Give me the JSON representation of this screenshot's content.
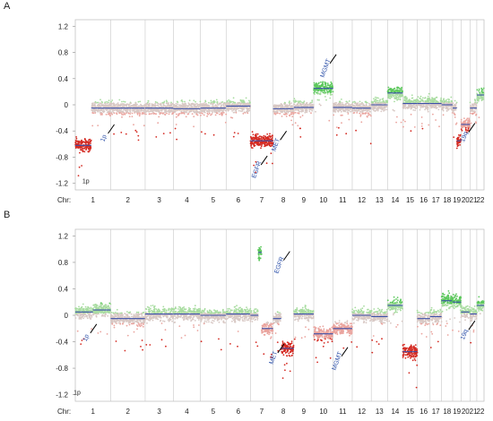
{
  "chart_data": [
    {
      "panel": "A",
      "type": "scatter",
      "y_ticks": [
        "1.2",
        "0.8",
        "0.4",
        "0",
        "-0.4",
        "-0.8",
        "-1.2"
      ],
      "ylim": [
        -1.3,
        1.3
      ],
      "x_prefix": "Chr:",
      "chromosomes": [
        {
          "label": "1",
          "segments": [
            {
              "from": 0.0,
              "to": 0.45,
              "value": -0.62
            },
            {
              "from": 0.45,
              "to": 1.0,
              "value": -0.05
            }
          ]
        },
        {
          "label": "2",
          "segments": [
            {
              "from": 0,
              "to": 1,
              "value": -0.05
            }
          ]
        },
        {
          "label": "3",
          "segments": [
            {
              "from": 0,
              "to": 1,
              "value": -0.05
            }
          ]
        },
        {
          "label": "4",
          "segments": [
            {
              "from": 0,
              "to": 1,
              "value": -0.06
            }
          ]
        },
        {
          "label": "5",
          "segments": [
            {
              "from": 0,
              "to": 1,
              "value": -0.05
            }
          ]
        },
        {
          "label": "6",
          "segments": [
            {
              "from": 0,
              "to": 1,
              "value": -0.02
            }
          ]
        },
        {
          "label": "7",
          "segments": [
            {
              "from": 0,
              "to": 1,
              "value": -0.55
            }
          ]
        },
        {
          "label": "8",
          "segments": [
            {
              "from": 0,
              "to": 1,
              "value": -0.06
            }
          ]
        },
        {
          "label": "9",
          "segments": [
            {
              "from": 0,
              "to": 1,
              "value": -0.04
            }
          ]
        },
        {
          "label": "10",
          "segments": [
            {
              "from": 0,
              "to": 1,
              "value": 0.25
            }
          ]
        },
        {
          "label": "11",
          "segments": [
            {
              "from": 0,
              "to": 1,
              "value": -0.04
            }
          ]
        },
        {
          "label": "12",
          "segments": [
            {
              "from": 0,
              "to": 1,
              "value": -0.05
            }
          ]
        },
        {
          "label": "13",
          "segments": [
            {
              "from": 0,
              "to": 1,
              "value": 0.0
            }
          ]
        },
        {
          "label": "14",
          "segments": [
            {
              "from": 0,
              "to": 1,
              "value": 0.18
            }
          ]
        },
        {
          "label": "15",
          "segments": [
            {
              "from": 0,
              "to": 1,
              "value": 0.02
            }
          ]
        },
        {
          "label": "16",
          "segments": [
            {
              "from": 0,
              "to": 1,
              "value": 0.02
            }
          ]
        },
        {
          "label": "17",
          "segments": [
            {
              "from": 0,
              "to": 1,
              "value": 0.02
            }
          ]
        },
        {
          "label": "18",
          "segments": [
            {
              "from": 0,
              "to": 1,
              "value": 0.0
            }
          ]
        },
        {
          "label": "19",
          "segments": [
            {
              "from": 0,
              "to": 0.5,
              "value": -0.05
            },
            {
              "from": 0.5,
              "to": 1.0,
              "value": -0.55
            }
          ]
        },
        {
          "label": "20",
          "segments": [
            {
              "from": 0,
              "to": 1,
              "value": -0.3
            }
          ]
        },
        {
          "label": "21",
          "segments": [
            {
              "from": 0,
              "to": 1,
              "value": -0.05
            }
          ]
        },
        {
          "label": "22",
          "segments": [
            {
              "from": 0,
              "to": 1,
              "value": 0.15
            }
          ]
        }
      ],
      "annotations": [
        {
          "text": "1p",
          "chr": 1,
          "pos": 0.3,
          "y": -1.2,
          "style": "black",
          "rotate": false
        },
        {
          "text": "1p",
          "chr": 1,
          "pos": 0.85,
          "y": -0.52,
          "style": "blue",
          "rotate": true
        },
        {
          "text": "EGFR",
          "chr": 7,
          "pos": 0.35,
          "y": -1.0,
          "style": "blue",
          "rotate": true
        },
        {
          "text": "MET",
          "chr": 7,
          "pos": 1.2,
          "y": -0.62,
          "style": "blue",
          "rotate": true
        },
        {
          "text": "MGMT",
          "chr": 10,
          "pos": 0.7,
          "y": 0.55,
          "style": "blue",
          "rotate": true
        },
        {
          "text": "19q",
          "chr": 20,
          "pos": 0.55,
          "y": -0.5,
          "style": "blue",
          "rotate": true
        }
      ]
    },
    {
      "panel": "B",
      "type": "scatter",
      "y_ticks": [
        "1.2",
        "0.8",
        "0.4",
        "0",
        "-0.4",
        "-0.8",
        "-1.2"
      ],
      "ylim": [
        -1.3,
        1.3
      ],
      "x_prefix": "Chr:",
      "chromosomes": [
        {
          "label": "1",
          "segments": [
            {
              "from": 0.0,
              "to": 0.5,
              "value": 0.05
            },
            {
              "from": 0.5,
              "to": 1.0,
              "value": 0.08
            }
          ]
        },
        {
          "label": "2",
          "segments": [
            {
              "from": 0,
              "to": 1,
              "value": -0.05
            }
          ]
        },
        {
          "label": "3",
          "segments": [
            {
              "from": 0,
              "to": 1,
              "value": 0.02
            }
          ]
        },
        {
          "label": "4",
          "segments": [
            {
              "from": 0,
              "to": 1,
              "value": 0.02
            }
          ]
        },
        {
          "label": "5",
          "segments": [
            {
              "from": 0,
              "to": 1,
              "value": 0.0
            }
          ]
        },
        {
          "label": "6",
          "segments": [
            {
              "from": 0,
              "to": 1,
              "value": 0.02
            }
          ]
        },
        {
          "label": "7",
          "segments": [
            {
              "from": 0.0,
              "to": 0.35,
              "value": 0.0
            },
            {
              "from": 0.35,
              "to": 0.5,
              "value": 0.95
            },
            {
              "from": 0.5,
              "to": 1.0,
              "value": -0.2
            }
          ]
        },
        {
          "label": "8",
          "segments": [
            {
              "from": 0.0,
              "to": 0.4,
              "value": -0.05
            },
            {
              "from": 0.4,
              "to": 1.0,
              "value": -0.5
            }
          ]
        },
        {
          "label": "9",
          "segments": [
            {
              "from": 0,
              "to": 1,
              "value": 0.02
            }
          ]
        },
        {
          "label": "10",
          "segments": [
            {
              "from": 0,
              "to": 1,
              "value": -0.28
            }
          ]
        },
        {
          "label": "11",
          "segments": [
            {
              "from": 0,
              "to": 1,
              "value": -0.2
            }
          ]
        },
        {
          "label": "12",
          "segments": [
            {
              "from": 0,
              "to": 1,
              "value": 0.0
            }
          ]
        },
        {
          "label": "13",
          "segments": [
            {
              "from": 0,
              "to": 1,
              "value": -0.02
            }
          ]
        },
        {
          "label": "14",
          "segments": [
            {
              "from": 0,
              "to": 1,
              "value": 0.15
            }
          ]
        },
        {
          "label": "15",
          "segments": [
            {
              "from": 0,
              "to": 1,
              "value": -0.55
            }
          ]
        },
        {
          "label": "16",
          "segments": [
            {
              "from": 0,
              "to": 1,
              "value": -0.05
            }
          ]
        },
        {
          "label": "17",
          "segments": [
            {
              "from": 0,
              "to": 1,
              "value": -0.02
            }
          ]
        },
        {
          "label": "18",
          "segments": [
            {
              "from": 0,
              "to": 1,
              "value": 0.22
            }
          ]
        },
        {
          "label": "19",
          "segments": [
            {
              "from": 0,
              "to": 1,
              "value": 0.2
            }
          ]
        },
        {
          "label": "20",
          "segments": [
            {
              "from": 0,
              "to": 1,
              "value": 0.05
            }
          ]
        },
        {
          "label": "21",
          "segments": [
            {
              "from": 0,
              "to": 1,
              "value": 0.02
            }
          ]
        },
        {
          "label": "22",
          "segments": [
            {
              "from": 0,
              "to": 1,
              "value": 0.15
            }
          ]
        }
      ],
      "annotations": [
        {
          "text": "1p",
          "chr": 1,
          "pos": 0.05,
          "y": -1.2,
          "style": "black",
          "rotate": false
        },
        {
          "text": "1p",
          "chr": 1,
          "pos": 0.35,
          "y": -0.35,
          "style": "blue",
          "rotate": true
        },
        {
          "text": "EGFR",
          "chr": 7,
          "pos": 1.35,
          "y": 0.75,
          "style": "blue",
          "rotate": true
        },
        {
          "text": "MET",
          "chr": 8,
          "pos": 0.1,
          "y": -0.65,
          "style": "blue",
          "rotate": true
        },
        {
          "text": "MGMT",
          "chr": 10,
          "pos": 1.3,
          "y": -0.7,
          "style": "blue",
          "rotate": true
        },
        {
          "text": "19q",
          "chr": 20,
          "pos": 0.55,
          "y": -0.3,
          "style": "blue",
          "rotate": true
        }
      ]
    }
  ],
  "colors": {
    "gain": "#5cc85c",
    "gain_light": "#a8dca0",
    "loss": "#d42a22",
    "loss_light": "#eaa49e",
    "neutral": "#d8c8c4",
    "segment": "#3a4fa8",
    "arrow": "#000000",
    "annotation": "#2b4fa8"
  }
}
